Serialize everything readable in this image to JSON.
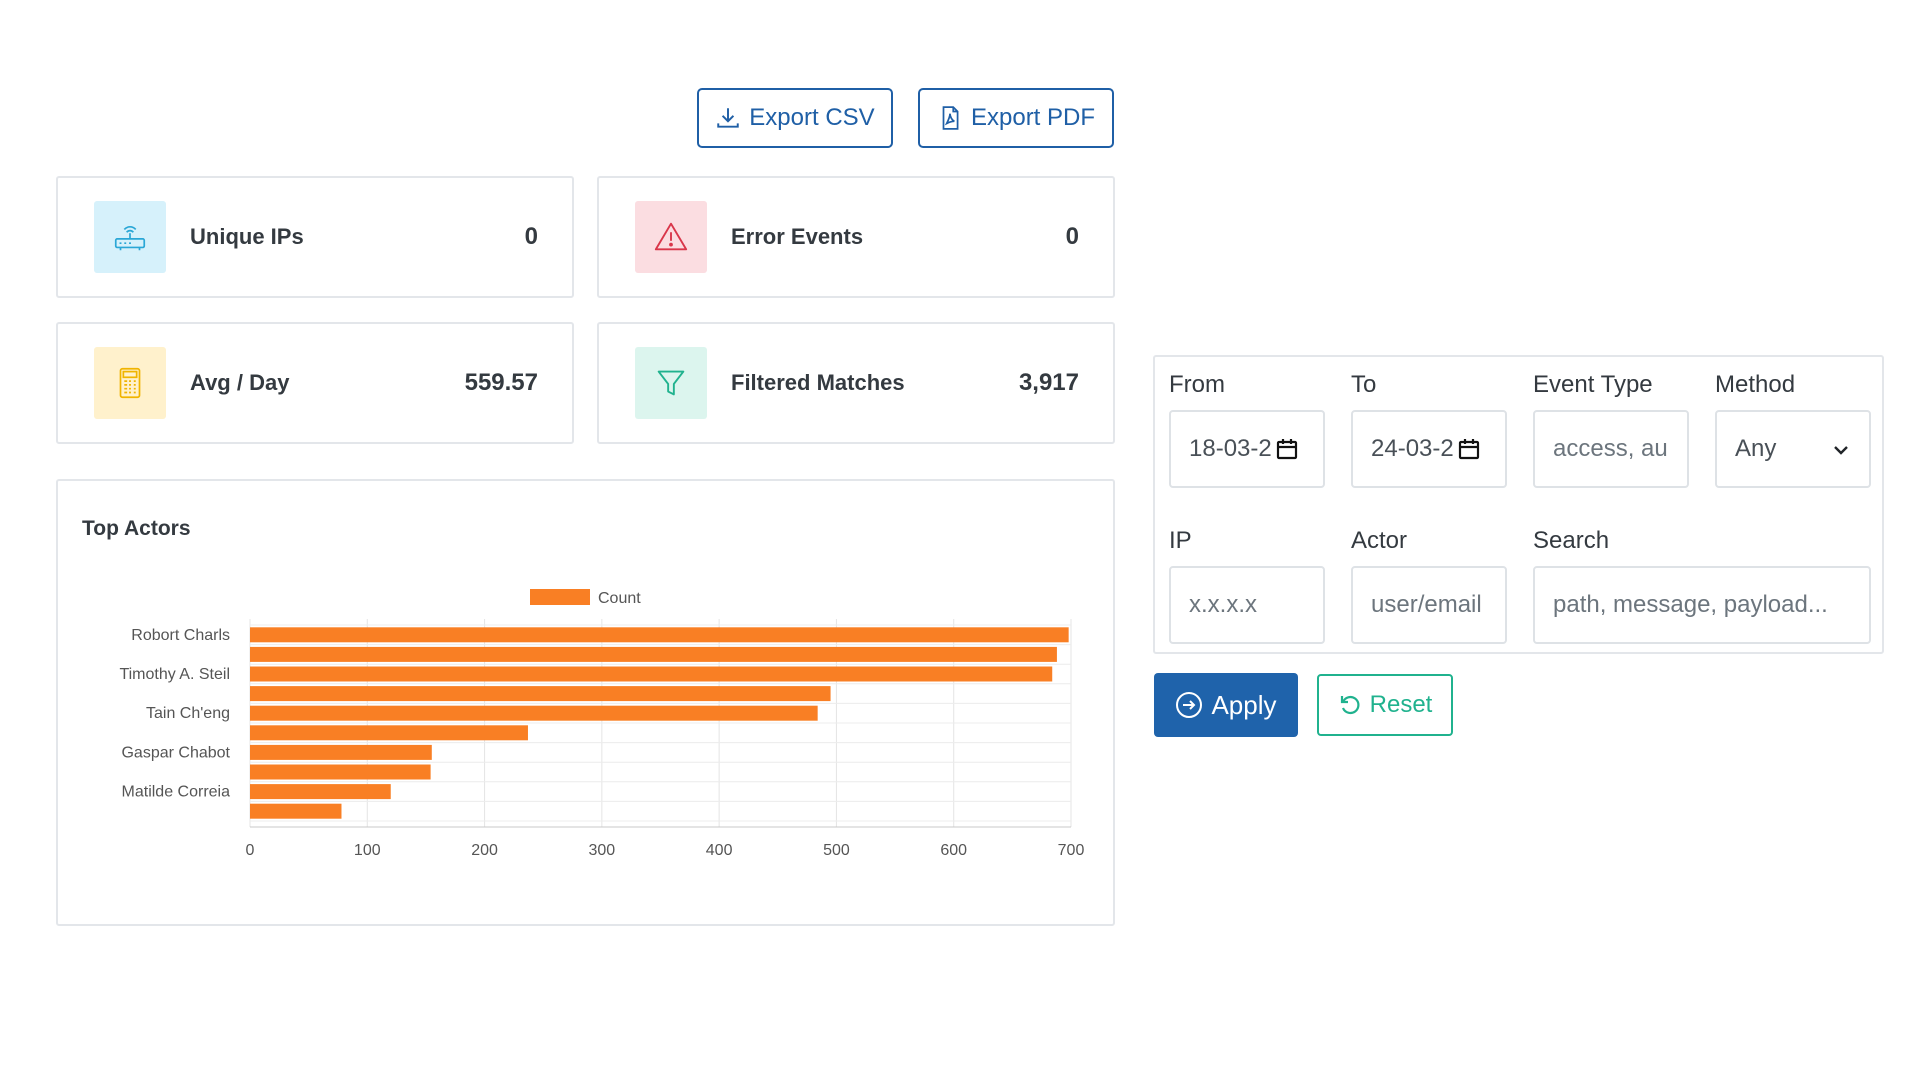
{
  "toolbar": {
    "export_csv_label": "Export CSV",
    "export_pdf_label": "Export PDF"
  },
  "stats": {
    "unique_ips": {
      "label": "Unique IPs",
      "value": "0",
      "icon": "router-icon"
    },
    "error_events": {
      "label": "Error Events",
      "value": "0",
      "icon": "warning-icon"
    },
    "avg_day": {
      "label": "Avg / Day",
      "value": "559.57",
      "icon": "calculator-icon"
    },
    "filtered_matches": {
      "label": "Filtered Matches",
      "value": "3,917",
      "icon": "filter-icon"
    }
  },
  "colors": {
    "primary": "#1f63ab",
    "bar": "#f97f24",
    "reset": "#20b28e",
    "icon_bg_blue": "#d6f1fb",
    "icon_bg_red": "#fbdde1",
    "icon_bg_yellow": "#fff1cc",
    "icon_bg_green": "#dcf5ee"
  },
  "chart_data": {
    "type": "bar",
    "orientation": "horizontal",
    "title": "Top Actors",
    "legend": [
      "Count"
    ],
    "legend_position": "top",
    "categories": [
      "Robort Charls",
      "",
      "Timothy A. Steil",
      "",
      "Tain Ch'eng",
      "",
      "Gaspar Chabot",
      "",
      "Matilde Correia",
      ""
    ],
    "values": [
      698,
      688,
      684,
      495,
      484,
      237,
      155,
      154,
      120,
      78
    ],
    "xlim": [
      0,
      700
    ],
    "x_ticks": [
      "0",
      "100",
      "200",
      "300",
      "400",
      "500",
      "600",
      "700"
    ],
    "grid": true
  },
  "filters": {
    "from": {
      "label": "From",
      "value": "18-03-2"
    },
    "to": {
      "label": "To",
      "value": "24-03-2"
    },
    "event_type": {
      "label": "Event Type",
      "placeholder": "access, au"
    },
    "method": {
      "label": "Method",
      "value": "Any"
    },
    "ip": {
      "label": "IP",
      "placeholder": "x.x.x.x"
    },
    "actor": {
      "label": "Actor",
      "placeholder": "user/email"
    },
    "search": {
      "label": "Search",
      "placeholder": "path, message, payload..."
    }
  },
  "actions": {
    "apply_label": "Apply",
    "reset_label": "Reset"
  }
}
